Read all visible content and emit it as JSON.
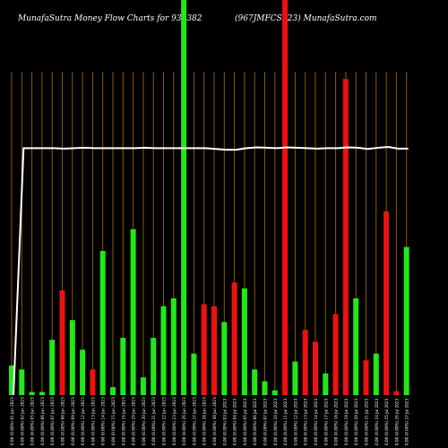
{
  "title_left": "MunafaSutra  Money Flow  Charts for 936382",
  "title_right": "(967JMFCSL23) MunafaSutra.com",
  "chart_data": {
    "type": "bar",
    "colors": {
      "up": "#22e81a",
      "down": "#ee1111",
      "grid": "#8a5a12",
      "line": "#ffffff",
      "background": "#000000"
    },
    "bars": [
      {
        "value": 7.5,
        "color": "green",
        "label": "0.00 (0.00%) 01 Jun 2023"
      },
      {
        "value": 6.5,
        "color": "green",
        "label": "0.00 (0.00%) 02 Jun 2023"
      },
      {
        "value": 0.8,
        "color": "green",
        "label": "0.00 (0.00%) 05 Jun 2023"
      },
      {
        "value": 0.8,
        "color": "green",
        "label": "0.00 (0.00%) 06 Jun 2023"
      },
      {
        "value": 14.0,
        "color": "green",
        "label": "0.00 (0.00%) 07 Jun 2023"
      },
      {
        "value": 26.5,
        "color": "red",
        "label": "0.00 (0.00%) 08 Jun 2023"
      },
      {
        "value": 19.0,
        "color": "green",
        "label": "0.00 (0.00%) 09 Jun 2023"
      },
      {
        "value": 11.5,
        "color": "green",
        "label": "0.00 (0.00%) 12 Jun 2023"
      },
      {
        "value": 6.5,
        "color": "red",
        "label": "0.00 (0.00%) 13 Jun 2023"
      },
      {
        "value": 36.5,
        "color": "green",
        "label": "0.00 (0.00%) 14 Jun 2023"
      },
      {
        "value": 2.0,
        "color": "green",
        "label": "0.00 (0.00%) 15 Jun 2023"
      },
      {
        "value": 14.5,
        "color": "green",
        "label": "0.00 (0.00%) 16 Jun 2023"
      },
      {
        "value": 42.0,
        "color": "green",
        "label": "0.00 (0.00%) 19 Jun 2023"
      },
      {
        "value": 4.5,
        "color": "green",
        "label": "0.00 (0.00%) 20 Jun 2023"
      },
      {
        "value": 14.5,
        "color": "green",
        "label": "0.00 (0.00%) 21 Jun 2023"
      },
      {
        "value": 22.5,
        "color": "green",
        "label": "0.00 (0.00%) 22 Jun 2023"
      },
      {
        "value": 24.5,
        "color": "green",
        "label": "0.00 (0.00%) 23 Jun 2023"
      },
      {
        "value": 100,
        "color": "green",
        "label": "0.00 (0.00%) 26 Jun 2023"
      },
      {
        "value": 10.5,
        "color": "green",
        "label": "0.00 (0.00%) 27 Jun 2023"
      },
      {
        "value": 23.0,
        "color": "red",
        "label": "0.00 (0.00%) 28 Jun 2023"
      },
      {
        "value": 22.5,
        "color": "red",
        "label": "0.00 (0.00%) 30 Jun 2023"
      },
      {
        "value": 18.5,
        "color": "green",
        "label": "0.00 (0.00%) 03 Jul 2023"
      },
      {
        "value": 28.5,
        "color": "red",
        "label": "0.00 (0.00%) 04 Jul 2023"
      },
      {
        "value": 27.0,
        "color": "green",
        "label": "0.00 (0.00%) 05 Jul 2023"
      },
      {
        "value": 6.5,
        "color": "green",
        "label": "0.00 (0.00%) 06 Jul 2023"
      },
      {
        "value": 3.5,
        "color": "green",
        "label": "0.00 (0.00%) 07 Jul 2023"
      },
      {
        "value": 1.2,
        "color": "green",
        "label": "0.00 (0.00%) 10 Jul 2023"
      },
      {
        "value": 100,
        "color": "red",
        "label": "0.00 (0.00%) 11 Jul 2023"
      },
      {
        "value": 8.5,
        "color": "green",
        "label": "0.00 (0.00%) 12 Jul 2023"
      },
      {
        "value": 16.5,
        "color": "red",
        "label": "0.00 (0.00%) 13 Jul 2023"
      },
      {
        "value": 13.5,
        "color": "red",
        "label": "0.00 (0.00%) 14 Jul 2023"
      },
      {
        "value": 5.5,
        "color": "green",
        "label": "0.00 (0.00%) 17 Jul 2023"
      },
      {
        "value": 20.5,
        "color": "red",
        "label": "0.00 (0.00%) 18 Jul 2023"
      },
      {
        "value": 80.0,
        "color": "red",
        "label": "0.00 (0.00%) 19 Jul 2023"
      },
      {
        "value": 24.5,
        "color": "green",
        "label": "0.00 (0.00%) 20 Jul 2023"
      },
      {
        "value": 8.8,
        "color": "red",
        "label": "0.00 (0.00%) 21 Jul 2023"
      },
      {
        "value": 10.5,
        "color": "green",
        "label": "0.00 (0.00%) 24 Jul 2023"
      },
      {
        "value": 46.5,
        "color": "red",
        "label": "0.00 (0.00%) 25 Jul 2023"
      },
      {
        "value": 1.0,
        "color": "red",
        "label": "0.00 (0.00%) 26 Jul 2023"
      },
      {
        "value": 37.5,
        "color": "green",
        "label": "0.00 (0.00%) 27 Jul 2023"
      }
    ],
    "line": [
      0,
      62.5,
      62.5,
      62.5,
      62.5,
      62.4,
      62.5,
      62.6,
      62.5,
      62.5,
      62.5,
      62.5,
      62.5,
      62.6,
      62.5,
      62.5,
      62.5,
      62.5,
      62.5,
      62.5,
      62.3,
      62.1,
      62.1,
      62.5,
      62.7,
      62.6,
      62.5,
      62.7,
      62.6,
      62.5,
      62.4,
      62.5,
      62.5,
      62.7,
      62.6,
      62.3,
      62.6,
      62.8,
      62.4,
      62.4
    ],
    "ylim": [
      0,
      100
    ],
    "grid": true
  }
}
